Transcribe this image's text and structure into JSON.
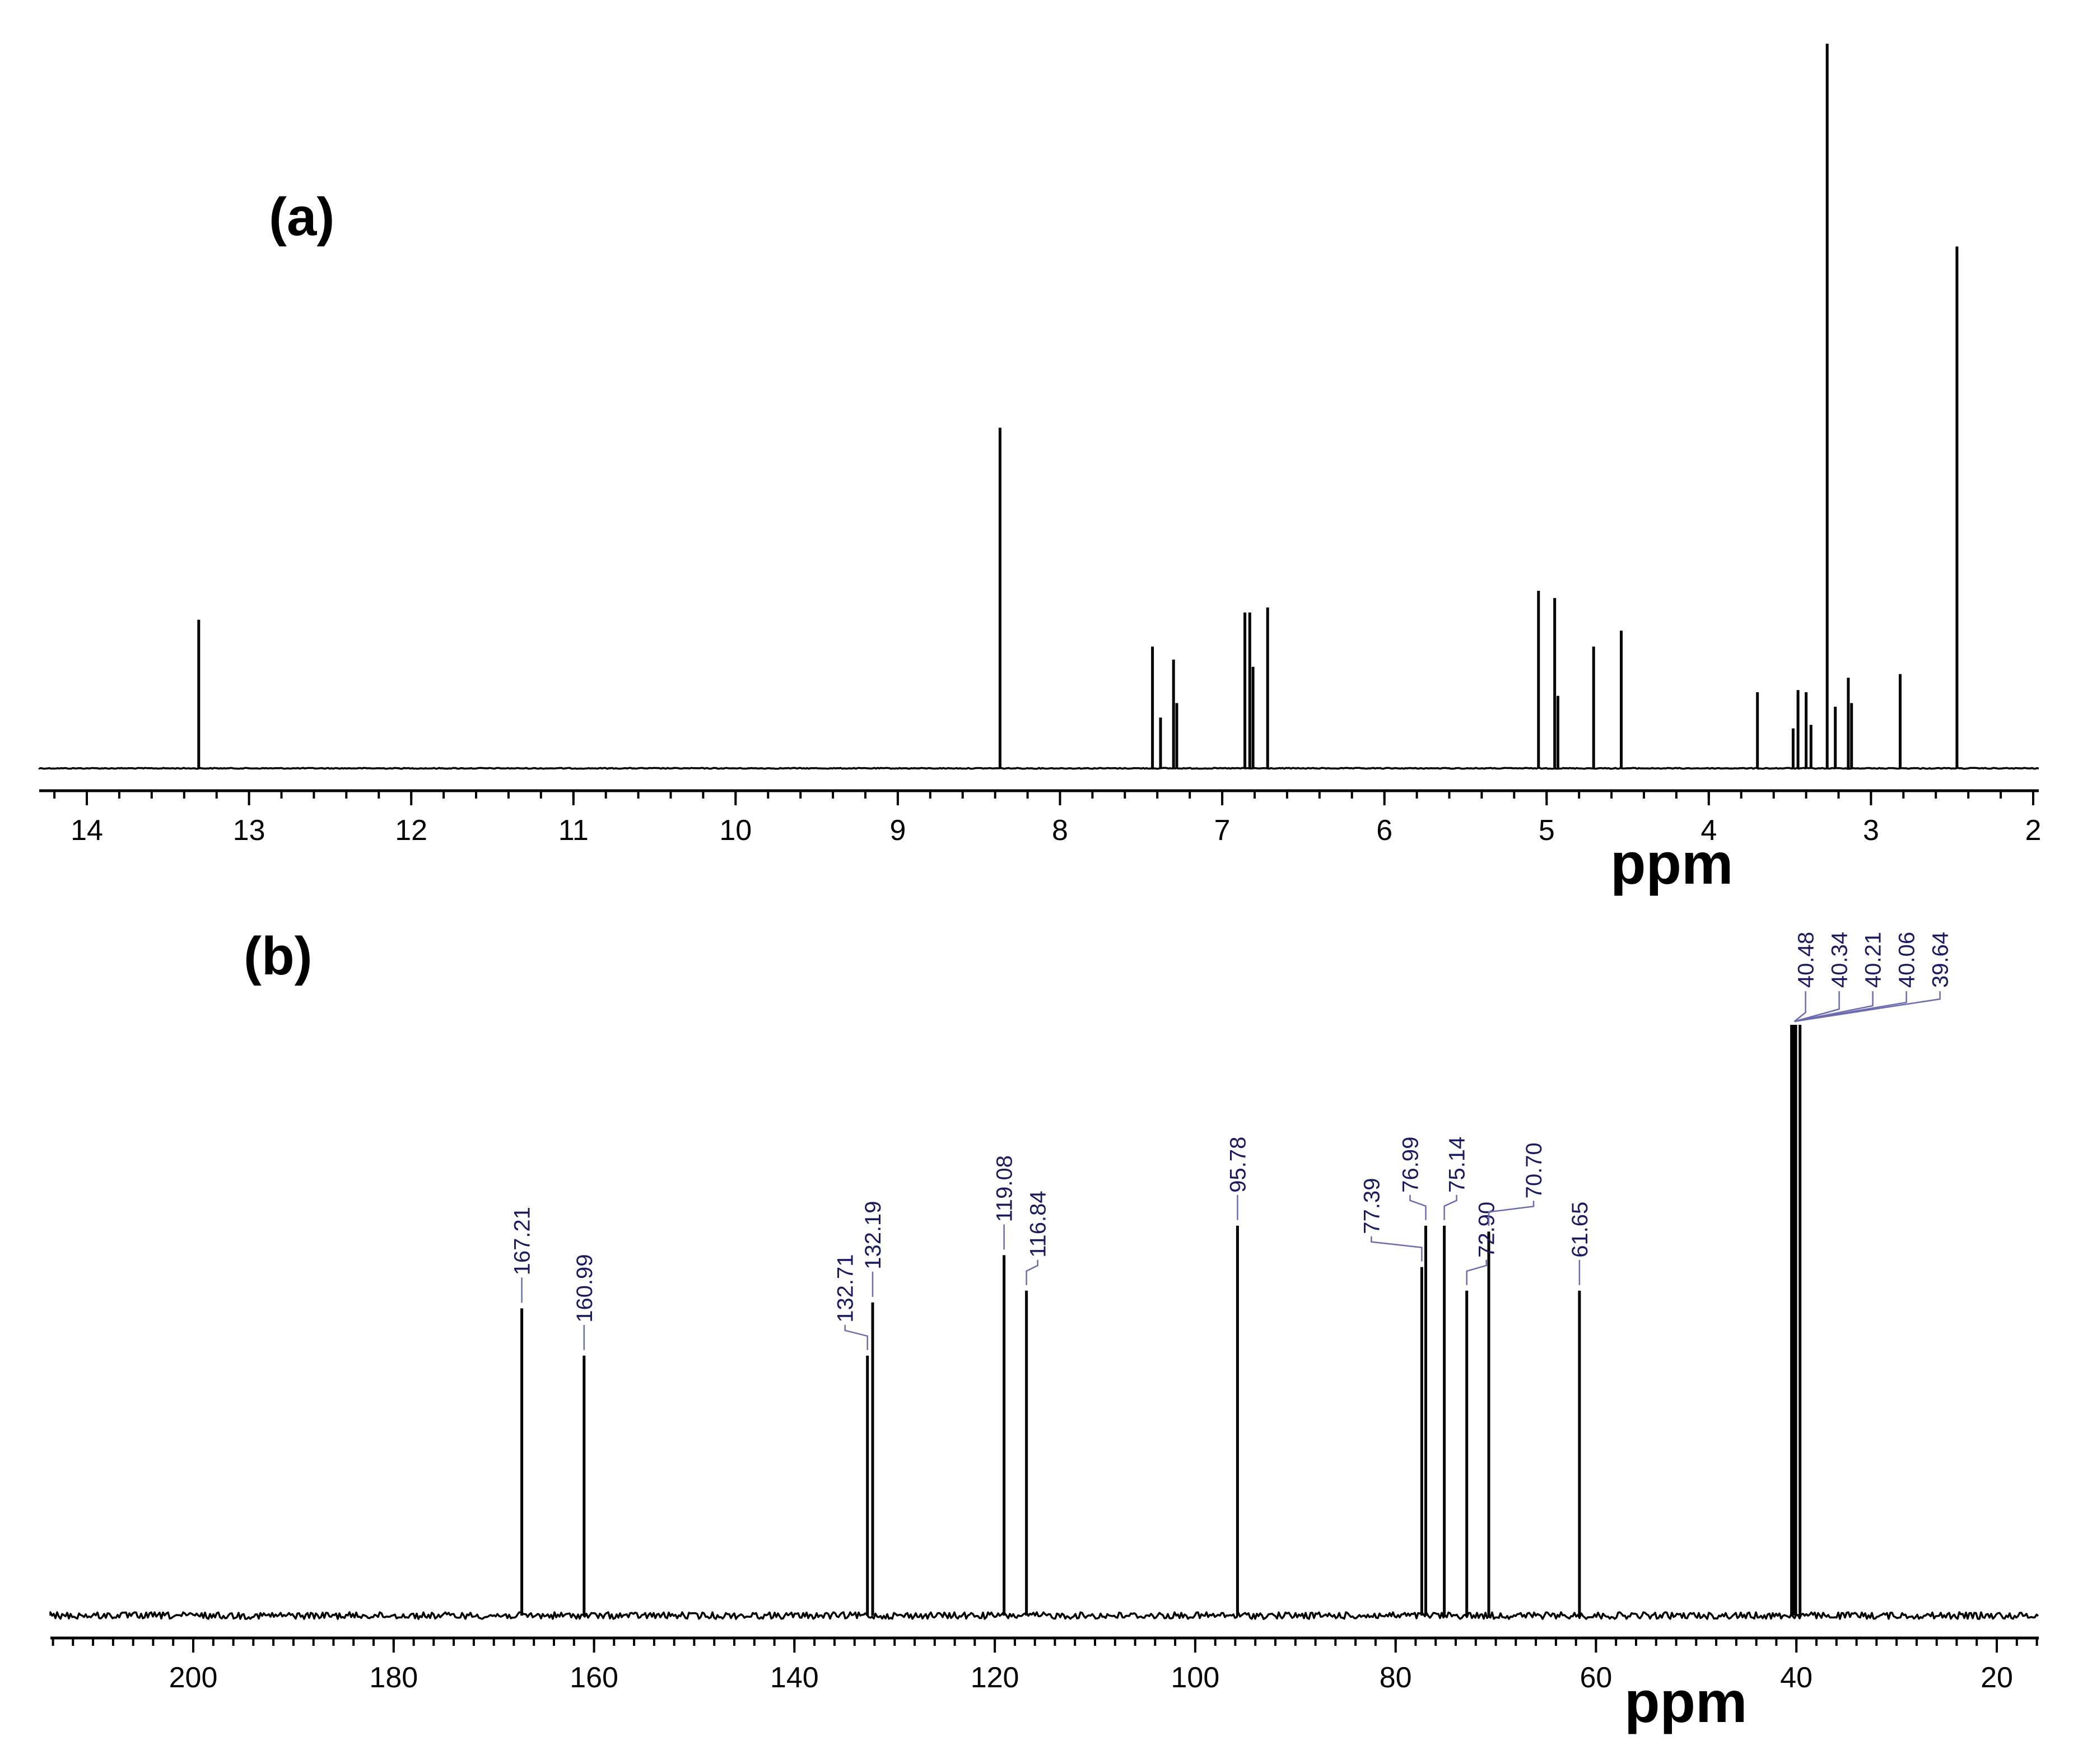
{
  "chart_data": [
    {
      "type": "line",
      "panel": "(a)",
      "title": "",
      "xlabel": "ppm",
      "ylabel": "",
      "xlim": [
        14.3,
        2.0
      ],
      "ylim": [
        0,
        1.0
      ],
      "x_ticks": [
        14,
        13,
        12,
        11,
        10,
        9,
        8,
        7,
        6,
        5,
        4,
        3,
        2
      ],
      "x_tick_labels": [
        "14",
        "13",
        "12",
        "11",
        "10",
        "9",
        "8",
        "7",
        "6",
        "5",
        "4",
        "3",
        "2"
      ],
      "grid": false,
      "peaks": [
        {
          "ppm": 13.31,
          "intensity": 0.205
        },
        {
          "ppm": 8.37,
          "intensity": 0.47
        },
        {
          "ppm": 7.43,
          "intensity": 0.168
        },
        {
          "ppm": 7.38,
          "intensity": 0.07
        },
        {
          "ppm": 7.3,
          "intensity": 0.15
        },
        {
          "ppm": 7.28,
          "intensity": 0.09
        },
        {
          "ppm": 6.86,
          "intensity": 0.215
        },
        {
          "ppm": 6.83,
          "intensity": 0.215
        },
        {
          "ppm": 6.81,
          "intensity": 0.14
        },
        {
          "ppm": 6.72,
          "intensity": 0.222
        },
        {
          "ppm": 5.05,
          "intensity": 0.245
        },
        {
          "ppm": 4.95,
          "intensity": 0.235
        },
        {
          "ppm": 4.93,
          "intensity": 0.1
        },
        {
          "ppm": 4.71,
          "intensity": 0.168
        },
        {
          "ppm": 4.54,
          "intensity": 0.19
        },
        {
          "ppm": 3.7,
          "intensity": 0.105
        },
        {
          "ppm": 3.48,
          "intensity": 0.055
        },
        {
          "ppm": 3.45,
          "intensity": 0.108
        },
        {
          "ppm": 3.4,
          "intensity": 0.105
        },
        {
          "ppm": 3.37,
          "intensity": 0.06
        },
        {
          "ppm": 3.27,
          "intensity": 1.0
        },
        {
          "ppm": 3.22,
          "intensity": 0.085
        },
        {
          "ppm": 3.14,
          "intensity": 0.125
        },
        {
          "ppm": 3.12,
          "intensity": 0.09
        },
        {
          "ppm": 2.82,
          "intensity": 0.13
        },
        {
          "ppm": 2.47,
          "intensity": 0.72
        }
      ]
    },
    {
      "type": "line",
      "panel": "(b)",
      "title": "",
      "xlabel": "ppm",
      "ylabel": "",
      "xlim": [
        214,
        15
      ],
      "ylim": [
        0,
        1.0
      ],
      "x_ticks": [
        200,
        180,
        160,
        140,
        120,
        100,
        80,
        60,
        40,
        20
      ],
      "x_tick_labels": [
        "200",
        "180",
        "160",
        "140",
        "120",
        "100",
        "80",
        "60",
        "40",
        "20"
      ],
      "grid": false,
      "peaks": [
        {
          "ppm": 167.21,
          "intensity": 0.52
        },
        {
          "ppm": 160.99,
          "intensity": 0.44
        },
        {
          "ppm": 132.71,
          "intensity": 0.44
        },
        {
          "ppm": 132.19,
          "intensity": 0.53
        },
        {
          "ppm": 119.08,
          "intensity": 0.61
        },
        {
          "ppm": 116.84,
          "intensity": 0.55
        },
        {
          "ppm": 95.78,
          "intensity": 0.66
        },
        {
          "ppm": 77.39,
          "intensity": 0.59
        },
        {
          "ppm": 76.99,
          "intensity": 0.66
        },
        {
          "ppm": 75.14,
          "intensity": 0.66
        },
        {
          "ppm": 72.9,
          "intensity": 0.55
        },
        {
          "ppm": 70.7,
          "intensity": 0.65
        },
        {
          "ppm": 61.65,
          "intensity": 0.55
        },
        {
          "ppm": 40.48,
          "intensity": 1.0
        },
        {
          "ppm": 40.34,
          "intensity": 1.0
        },
        {
          "ppm": 40.21,
          "intensity": 1.0
        },
        {
          "ppm": 40.06,
          "intensity": 1.0
        },
        {
          "ppm": 39.64,
          "intensity": 1.0
        }
      ],
      "peak_labels": [
        {
          "ppm": 167.21,
          "text": "167.21"
        },
        {
          "ppm": 160.99,
          "text": "160.99"
        },
        {
          "ppm": 132.71,
          "text": "132.71"
        },
        {
          "ppm": 132.19,
          "text": "132.19"
        },
        {
          "ppm": 119.08,
          "text": "119.08"
        },
        {
          "ppm": 116.84,
          "text": "116.84"
        },
        {
          "ppm": 95.78,
          "text": "95.78"
        },
        {
          "ppm": 77.39,
          "text": "77.39"
        },
        {
          "ppm": 76.99,
          "text": "76.99"
        },
        {
          "ppm": 75.14,
          "text": "75.14"
        },
        {
          "ppm": 72.9,
          "text": "72.90"
        },
        {
          "ppm": 70.7,
          "text": "70.70"
        },
        {
          "ppm": 61.65,
          "text": "61.65"
        },
        {
          "ppm": 40.48,
          "text": "40.48"
        },
        {
          "ppm": 40.34,
          "text": "40.34"
        },
        {
          "ppm": 40.21,
          "text": "40.21"
        },
        {
          "ppm": 40.06,
          "text": "40.06"
        },
        {
          "ppm": 39.64,
          "text": "39.64"
        }
      ]
    }
  ]
}
